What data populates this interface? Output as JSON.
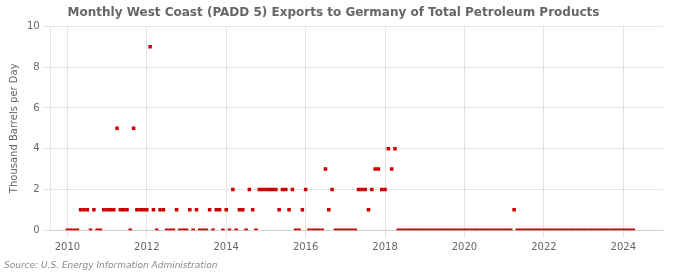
{
  "chart_data": {
    "type": "scatter",
    "title": "Monthly West Coast (PADD 5) Exports to Germany of Total Petroleum Products",
    "ylabel": "Thousand Barrels per Day",
    "source": "Source: U.S. Energy Information Administration",
    "color": "#cc0000",
    "marker": "square",
    "grid": true,
    "xlim": [
      2009.58,
      2025.0
    ],
    "xticks": [
      2010,
      2012,
      2014,
      2016,
      2018,
      2020,
      2022,
      2024
    ],
    "ylim": [
      0,
      10
    ],
    "yticks": [
      0,
      2,
      4,
      6,
      8,
      10
    ],
    "x": [
      2010.0,
      2010.083,
      2010.167,
      2010.25,
      2010.333,
      2010.417,
      2010.5,
      2010.583,
      2010.667,
      2010.75,
      2010.833,
      2010.917,
      2011.0,
      2011.083,
      2011.167,
      2011.25,
      2011.333,
      2011.417,
      2011.5,
      2011.583,
      2011.667,
      2011.75,
      2011.833,
      2011.917,
      2012.0,
      2012.083,
      2012.167,
      2012.25,
      2012.333,
      2012.417,
      2012.5,
      2012.583,
      2012.667,
      2012.75,
      2012.833,
      2012.917,
      2013.0,
      2013.083,
      2013.167,
      2013.25,
      2013.333,
      2013.417,
      2013.5,
      2013.583,
      2013.667,
      2013.75,
      2013.833,
      2013.917,
      2014.0,
      2014.083,
      2014.167,
      2014.25,
      2014.333,
      2014.417,
      2014.5,
      2014.583,
      2014.667,
      2014.75,
      2014.833,
      2014.917,
      2015.0,
      2015.083,
      2015.167,
      2015.25,
      2015.333,
      2015.417,
      2015.5,
      2015.583,
      2015.667,
      2015.75,
      2015.833,
      2015.917,
      2016.0,
      2016.083,
      2016.167,
      2016.25,
      2016.333,
      2016.417,
      2016.5,
      2016.583,
      2016.667,
      2016.75,
      2016.833,
      2016.917,
      2017.0,
      2017.083,
      2017.167,
      2017.25,
      2017.333,
      2017.417,
      2017.5,
      2017.583,
      2017.667,
      2017.75,
      2017.833,
      2017.917,
      2018.0,
      2018.083,
      2018.167,
      2018.25,
      2018.333,
      2018.417,
      2018.5,
      2018.583,
      2018.667,
      2018.75,
      2018.833,
      2018.917,
      2019.0,
      2019.083,
      2019.167,
      2019.25,
      2019.333,
      2019.417,
      2019.5,
      2019.583,
      2019.667,
      2019.75,
      2019.833,
      2019.917,
      2020.0,
      2020.083,
      2020.167,
      2020.25,
      2020.333,
      2020.417,
      2020.5,
      2020.583,
      2020.667,
      2020.75,
      2020.833,
      2020.917,
      2021.0,
      2021.083,
      2021.167,
      2021.25,
      2021.333,
      2021.417,
      2021.5,
      2021.583,
      2021.667,
      2021.75,
      2021.833,
      2021.917,
      2022.0,
      2022.083,
      2022.167,
      2022.25,
      2022.333,
      2022.417,
      2022.5,
      2022.583,
      2022.667,
      2022.75,
      2022.833,
      2022.917,
      2023.0,
      2023.083,
      2023.167,
      2023.25,
      2023.333,
      2023.417,
      2023.5,
      2023.583,
      2023.667,
      2023.75,
      2023.833,
      2023.917,
      2024.0,
      2024.083,
      2024.167,
      2024.25
    ],
    "values": [
      0,
      0,
      0,
      0,
      1,
      1,
      1,
      0,
      1,
      0,
      0,
      1,
      1,
      1,
      1,
      5,
      1,
      1,
      1,
      0,
      5,
      1,
      1,
      1,
      1,
      9,
      1,
      0,
      1,
      1,
      0,
      0,
      0,
      1,
      0,
      0,
      0,
      1,
      0,
      1,
      0,
      0,
      0,
      1,
      0,
      1,
      1,
      0,
      1,
      0,
      2,
      0,
      1,
      1,
      0,
      2,
      1,
      0,
      2,
      2,
      2,
      2,
      2,
      2,
      1,
      2,
      2,
      1,
      2,
      0,
      0,
      1,
      2,
      0,
      0,
      0,
      0,
      0,
      3,
      1,
      2,
      0,
      0,
      0,
      0,
      0,
      0,
      0,
      2,
      2,
      2,
      1,
      2,
      3,
      3,
      2,
      2,
      4,
      3,
      4,
      0,
      0,
      0,
      0,
      0,
      0,
      0,
      0,
      0,
      0,
      0,
      0,
      0,
      0,
      0,
      0,
      0,
      0,
      0,
      0,
      0,
      0,
      0,
      0,
      0,
      0,
      0,
      0,
      0,
      0,
      0,
      0,
      0,
      0,
      0,
      1,
      0,
      0,
      0,
      0,
      0,
      0,
      0,
      0,
      0,
      0,
      0,
      0,
      0,
      0,
      0,
      0,
      0,
      0,
      0,
      0,
      0,
      0,
      0,
      0,
      0,
      0,
      0,
      0,
      0,
      0,
      0,
      0,
      0,
      0,
      0,
      0
    ]
  }
}
